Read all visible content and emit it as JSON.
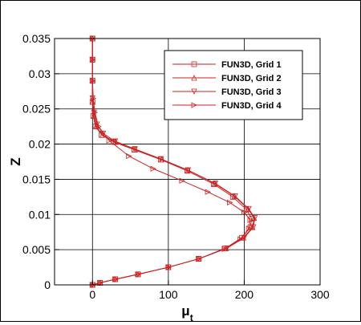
{
  "chart_data": {
    "type": "line",
    "title": "",
    "xlabel": "μ",
    "xlabel_subscript": "t",
    "ylabel": "Z",
    "xlim": [
      -50,
      300
    ],
    "ylim": [
      0,
      0.035
    ],
    "x_ticks": [
      0,
      100,
      200,
      300
    ],
    "y_ticks": [
      0,
      0.005,
      0.01,
      0.015,
      0.02,
      0.025,
      0.03,
      0.035
    ],
    "x_tick_labels": [
      "0",
      "100",
      "200",
      "300"
    ],
    "y_tick_labels": [
      "0",
      "0.005",
      "0.01",
      "0.015",
      "0.02",
      "0.025",
      "0.03",
      "0.035"
    ],
    "grid": true,
    "legend_position": "top-right",
    "line_color": "#cc2222",
    "series": [
      {
        "name": "FUN3D, Grid 1",
        "marker": "square",
        "points": [
          [
            0,
            0
          ],
          [
            10,
            0.0003
          ],
          [
            30,
            0.0008
          ],
          [
            60,
            0.0015
          ],
          [
            100,
            0.0025
          ],
          [
            140,
            0.0037
          ],
          [
            175,
            0.0052
          ],
          [
            197,
            0.0067
          ],
          [
            208,
            0.0082
          ],
          [
            210,
            0.0094
          ],
          [
            203,
            0.0107
          ],
          [
            185,
            0.0125
          ],
          [
            160,
            0.0143
          ],
          [
            125,
            0.0162
          ],
          [
            90,
            0.0178
          ],
          [
            55,
            0.0192
          ],
          [
            28,
            0.0203
          ],
          [
            12,
            0.0213
          ],
          [
            4,
            0.0225
          ],
          [
            1,
            0.024
          ],
          [
            0,
            0.026
          ],
          [
            0,
            0.029
          ],
          [
            0,
            0.032
          ],
          [
            0,
            0.035
          ]
        ]
      },
      {
        "name": "FUN3D, Grid 2",
        "marker": "triangle-up",
        "points": [
          [
            0,
            0
          ],
          [
            10,
            0.0003
          ],
          [
            30,
            0.0008
          ],
          [
            60,
            0.0015
          ],
          [
            100,
            0.0025
          ],
          [
            140,
            0.0037
          ],
          [
            176,
            0.0052
          ],
          [
            199,
            0.0067
          ],
          [
            211,
            0.0082
          ],
          [
            213,
            0.0095
          ],
          [
            205,
            0.0108
          ],
          [
            187,
            0.0126
          ],
          [
            161,
            0.0144
          ],
          [
            126,
            0.0163
          ],
          [
            91,
            0.0178
          ],
          [
            56,
            0.0192
          ],
          [
            30,
            0.0203
          ],
          [
            13,
            0.0213
          ],
          [
            5,
            0.0226
          ],
          [
            2,
            0.024
          ],
          [
            0,
            0.026
          ],
          [
            0,
            0.029
          ],
          [
            0,
            0.032
          ],
          [
            0,
            0.035
          ]
        ]
      },
      {
        "name": "FUN3D, Grid 3",
        "marker": "triangle-down",
        "points": [
          [
            0,
            0
          ],
          [
            10,
            0.0003
          ],
          [
            30,
            0.0008
          ],
          [
            60,
            0.0015
          ],
          [
            100,
            0.0025
          ],
          [
            140,
            0.0037
          ],
          [
            177,
            0.0052
          ],
          [
            200,
            0.0067
          ],
          [
            212,
            0.0082
          ],
          [
            214,
            0.0095
          ],
          [
            206,
            0.0108
          ],
          [
            188,
            0.0126
          ],
          [
            162,
            0.0144
          ],
          [
            126,
            0.0163
          ],
          [
            90,
            0.0179
          ],
          [
            56,
            0.0193
          ],
          [
            30,
            0.0204
          ],
          [
            14,
            0.0215
          ],
          [
            6,
            0.0228
          ],
          [
            2,
            0.0245
          ],
          [
            0,
            0.0265
          ],
          [
            0,
            0.029
          ],
          [
            0,
            0.032
          ],
          [
            0,
            0.035
          ]
        ]
      },
      {
        "name": "FUN3D, Grid 4",
        "marker": "triangle-right",
        "points": [
          [
            0,
            0
          ],
          [
            10,
            0.0003
          ],
          [
            30,
            0.0008
          ],
          [
            60,
            0.0015
          ],
          [
            100,
            0.0025
          ],
          [
            140,
            0.0037
          ],
          [
            174,
            0.0051
          ],
          [
            195,
            0.0065
          ],
          [
            206,
            0.008
          ],
          [
            208,
            0.0092
          ],
          [
            200,
            0.0103
          ],
          [
            181,
            0.0117
          ],
          [
            152,
            0.0132
          ],
          [
            118,
            0.0148
          ],
          [
            80,
            0.0165
          ],
          [
            48,
            0.0183
          ],
          [
            22,
            0.0205
          ],
          [
            8,
            0.0225
          ],
          [
            3,
            0.0245
          ],
          [
            1,
            0.0265
          ],
          [
            0,
            0.029
          ],
          [
            0,
            0.032
          ],
          [
            0,
            0.035
          ]
        ]
      }
    ]
  }
}
